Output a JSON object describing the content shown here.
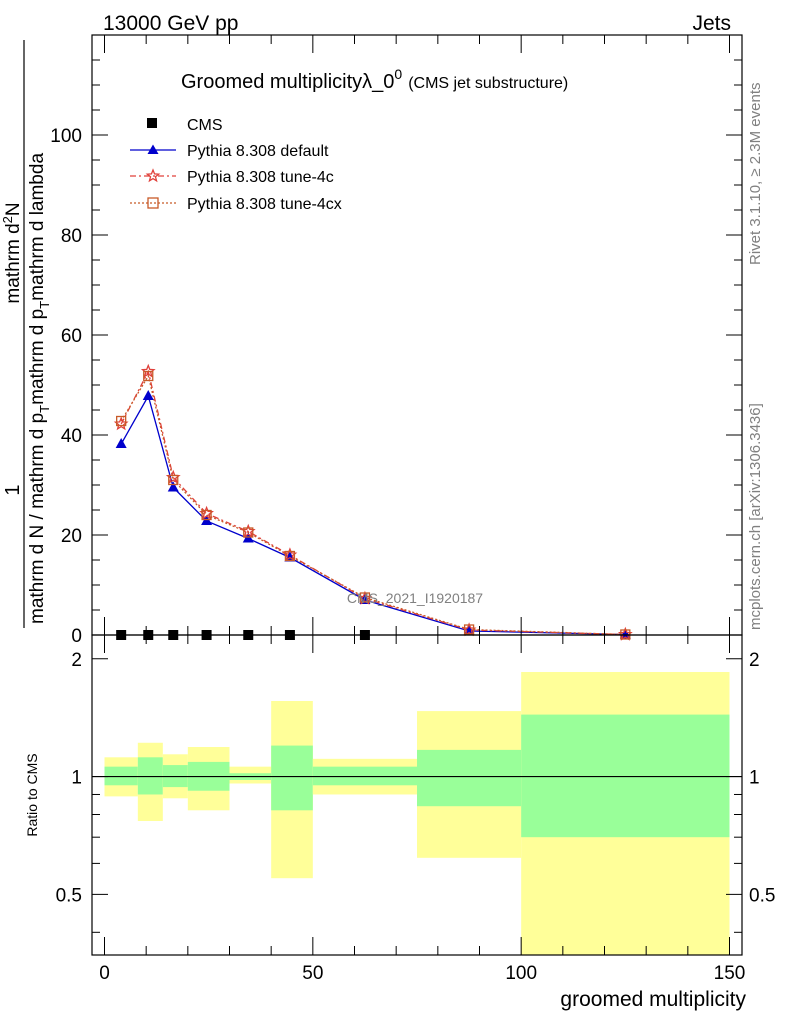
{
  "header": {
    "left": "13000 GeV pp",
    "right": "Jets"
  },
  "side_labels": {
    "rivet": "Rivet 3.1.10, ≥ 2.3M events",
    "mcplots": "mcplots.cern.ch [arXiv:1306.3436]"
  },
  "watermark": "CMS_2021_I1920187",
  "chart_data": [
    {
      "type": "line",
      "title": "Groomed multiplicityλ_0",
      "title_sup": "0",
      "subtitle": "(CMS jet substructure)",
      "ylabel": {
        "numerator": "1",
        "denominator": "mathrm d N / mathrm d p",
        "denominator_sub": "T",
        "denominator_tail": "mathrm d p",
        "denominator_tail_sub": "T",
        "denominator_end": "mathrm d lambda",
        "top": "mathrm d",
        "top_sup": "2",
        "top_end": "N"
      },
      "xlim": [
        -3,
        153
      ],
      "ylim": [
        0,
        120
      ],
      "yticks": [
        0,
        20,
        40,
        60,
        80,
        100
      ],
      "ytick_labels": [
        "0",
        "20",
        "40",
        "60",
        "80",
        "100"
      ],
      "legend_placement": "top-left",
      "series": [
        {
          "name": "CMS",
          "marker": "square",
          "color": "#000000",
          "x": [
            4,
            10.5,
            16.5,
            24.5,
            34.5,
            44.5,
            62.5
          ],
          "y": [
            0,
            0,
            0,
            0,
            0,
            0,
            0
          ]
        },
        {
          "name": "Pythia 8.308 default",
          "marker": "triangle",
          "color": "#0000cc",
          "x": [
            4,
            10.5,
            16.5,
            24.5,
            34.5,
            44.5,
            62.5,
            87.5,
            125
          ],
          "y": [
            38.2,
            47.8,
            29.5,
            22.8,
            19.3,
            15.5,
            7.0,
            0.8,
            0.1
          ]
        },
        {
          "name": "Pythia 8.308 tune-4c",
          "marker": "star",
          "color": "#e0403a",
          "x": [
            4,
            10.5,
            16.5,
            24.5,
            34.5,
            44.5,
            62.5,
            87.5,
            125
          ],
          "y": [
            42.2,
            52.7,
            31.5,
            24.3,
            20.7,
            16.0,
            7.3,
            1.0,
            0.1
          ]
        },
        {
          "name": "Pythia 8.308 tune-4cx",
          "marker": "open-square",
          "color": "#c85a28",
          "x": [
            4,
            10.5,
            16.5,
            24.5,
            34.5,
            44.5,
            62.5,
            87.5,
            125
          ],
          "y": [
            42.8,
            51.8,
            31.0,
            24.0,
            20.5,
            15.8,
            7.5,
            1.1,
            0.1
          ]
        }
      ]
    },
    {
      "type": "area",
      "ylabel": "Ratio to CMS",
      "xlabel": "groomed multiplicity",
      "xlim": [
        -3,
        153
      ],
      "ylim": [
        0.35,
        2.3
      ],
      "yticks": [
        0.5,
        1,
        2
      ],
      "ytick_labels": [
        "0.5",
        "1",
        "2"
      ],
      "xticks": [
        0,
        50,
        100,
        150
      ],
      "xtick_labels": [
        "0",
        "50",
        "100",
        "150"
      ],
      "colors": {
        "inner": "#99ff99",
        "outer": "#ffff99"
      },
      "bins": [
        {
          "lo": 0,
          "hi": 8,
          "inner": [
            0.95,
            1.06
          ],
          "outer": [
            0.89,
            1.12
          ]
        },
        {
          "lo": 8,
          "hi": 14,
          "inner": [
            0.9,
            1.12
          ],
          "outer": [
            0.77,
            1.22
          ]
        },
        {
          "lo": 14,
          "hi": 20,
          "inner": [
            0.94,
            1.07
          ],
          "outer": [
            0.88,
            1.14
          ]
        },
        {
          "lo": 20,
          "hi": 30,
          "inner": [
            0.92,
            1.09
          ],
          "outer": [
            0.82,
            1.19
          ]
        },
        {
          "lo": 30,
          "hi": 40,
          "inner": [
            0.98,
            1.02
          ],
          "outer": [
            0.96,
            1.06
          ]
        },
        {
          "lo": 40,
          "hi": 50,
          "inner": [
            0.82,
            1.2
          ],
          "outer": [
            0.55,
            1.56
          ]
        },
        {
          "lo": 50,
          "hi": 75,
          "inner": [
            0.95,
            1.06
          ],
          "outer": [
            0.9,
            1.11
          ]
        },
        {
          "lo": 75,
          "hi": 100,
          "inner": [
            0.84,
            1.17
          ],
          "outer": [
            0.62,
            1.47
          ]
        },
        {
          "lo": 100,
          "hi": 150,
          "inner": [
            0.7,
            1.44
          ],
          "outer": [
            0.3,
            1.85
          ]
        }
      ]
    }
  ]
}
